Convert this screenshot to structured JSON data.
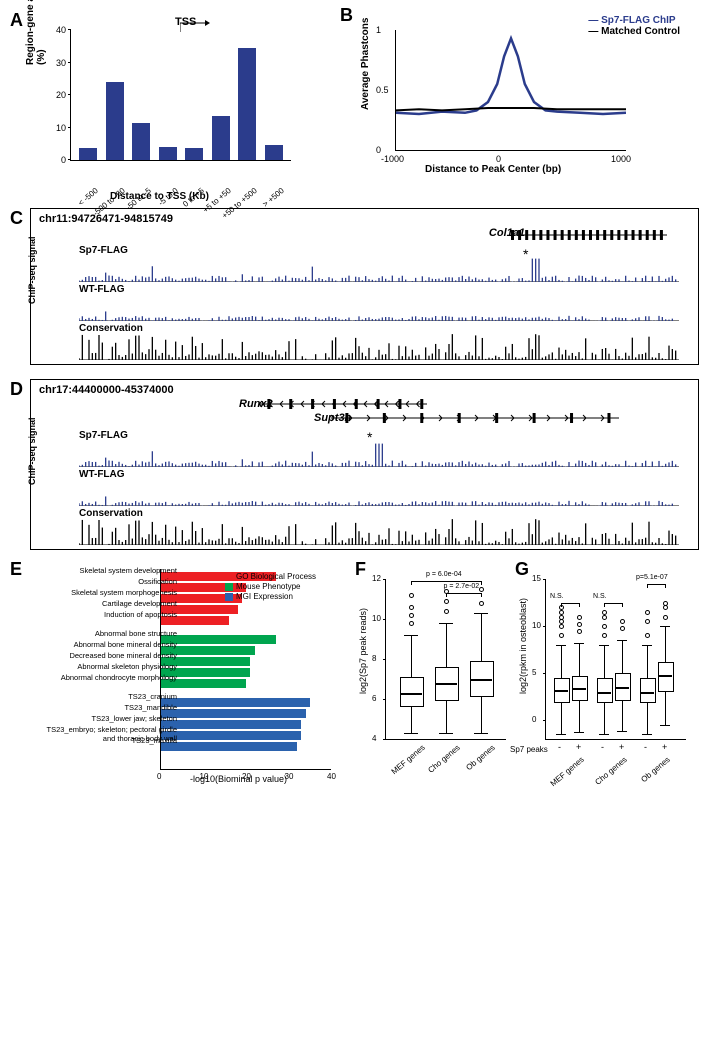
{
  "panelA": {
    "label": "A",
    "type": "bar",
    "ylabel": "Region-gene associations\n(%)",
    "xlabel": "Distance to TSS (Kb)",
    "tss_label": "TSS",
    "ylim": [
      0,
      40
    ],
    "ytick_step": 10,
    "categories": [
      "< -500",
      "-500 to -50",
      "-50 to -5",
      "-5 to 0",
      "0 to +5",
      "+5 to +50",
      "+50 to +500",
      "> +500"
    ],
    "values": [
      3.8,
      24,
      11.5,
      4,
      3.8,
      13.5,
      34.5,
      4.5
    ],
    "bar_color": "#2b3c8c",
    "background": "#ffffff"
  },
  "panelB": {
    "label": "B",
    "type": "line",
    "ylabel": "Average Phastcons",
    "xlabel": "Distance to Peak Center (bp)",
    "ylim": [
      0,
      1
    ],
    "ytick_step": 0.5,
    "xlim": [
      -1000,
      1000
    ],
    "xticks": [
      -1000,
      0,
      1000
    ],
    "series": [
      {
        "name": "Sp7-FLAG ChIP",
        "color": "#2b3c8c",
        "width": 2.5,
        "points": [
          [
            -1000,
            0.31
          ],
          [
            -800,
            0.3
          ],
          [
            -600,
            0.32
          ],
          [
            -400,
            0.31
          ],
          [
            -300,
            0.33
          ],
          [
            -200,
            0.4
          ],
          [
            -120,
            0.55
          ],
          [
            -60,
            0.78
          ],
          [
            0,
            0.93
          ],
          [
            60,
            0.78
          ],
          [
            120,
            0.55
          ],
          [
            200,
            0.4
          ],
          [
            300,
            0.33
          ],
          [
            400,
            0.32
          ],
          [
            600,
            0.31
          ],
          [
            800,
            0.3
          ],
          [
            1000,
            0.31
          ]
        ]
      },
      {
        "name": "Matched Control",
        "color": "#000000",
        "width": 2,
        "points": [
          [
            -1000,
            0.33
          ],
          [
            -800,
            0.34
          ],
          [
            -600,
            0.33
          ],
          [
            -400,
            0.34
          ],
          [
            -200,
            0.35
          ],
          [
            0,
            0.35
          ],
          [
            200,
            0.35
          ],
          [
            400,
            0.34
          ],
          [
            600,
            0.34
          ],
          [
            800,
            0.34
          ],
          [
            1000,
            0.34
          ]
        ]
      }
    ]
  },
  "panelC": {
    "label": "C",
    "locus": "chr11:94726471-94815749",
    "gene": "Col1a1",
    "gene_x": 0.72,
    "gene_width": 0.26,
    "star_x": 0.76,
    "tracks": [
      {
        "name": "Sp7-FLAG",
        "color": "#2b3c8c",
        "ymax": 20,
        "yticks": [
          0,
          20
        ]
      },
      {
        "name": "WT-FLAG",
        "color": "#2b3c8c",
        "ymax": 20,
        "yticks": [
          0,
          20
        ]
      },
      {
        "name": "Conservation",
        "color": "#000000",
        "ymax": 1
      }
    ],
    "side_label": "ChIP-seq signal"
  },
  "panelD": {
    "label": "D",
    "locus": "chr17:44400000-45374000",
    "genes": [
      {
        "name": "Runx2",
        "x": 0.3,
        "width": 0.28,
        "dir": "left"
      },
      {
        "name": "Supt3h",
        "x": 0.42,
        "width": 0.48,
        "dir": "right"
      }
    ],
    "star_x": 0.5,
    "tracks": [
      {
        "name": "Sp7-FLAG",
        "color": "#2b3c8c",
        "ymax": 40,
        "yticks": [
          0,
          40
        ]
      },
      {
        "name": "WT-FLAG",
        "color": "#2b3c8c",
        "ymax": 40,
        "yticks": [
          0,
          40
        ]
      },
      {
        "name": "Conservation",
        "color": "#000000",
        "ymax": 1
      }
    ],
    "side_label": "ChIP-seq signal"
  },
  "panelE": {
    "label": "E",
    "type": "hbar",
    "xlabel": "-log10(Biominal p value)",
    "xlim": [
      0,
      40
    ],
    "xticks": [
      0,
      10,
      20,
      30,
      40
    ],
    "groups": [
      {
        "name": "GO Biological Process",
        "color": "#ed2024",
        "rows": [
          {
            "label": "Skeletal system development",
            "value": 27
          },
          {
            "label": "Ossification",
            "value": 20
          },
          {
            "label": "Skeletal system morphogenesis",
            "value": 19
          },
          {
            "label": "Cartilage development",
            "value": 18
          },
          {
            "label": "Induction of apoptosis",
            "value": 16
          }
        ]
      },
      {
        "name": "Mouse Phenotype",
        "color": "#00a54f",
        "rows": [
          {
            "label": "Abnormal bone structure",
            "value": 27
          },
          {
            "label": "Abnormal bone mineral density",
            "value": 22
          },
          {
            "label": "Decreased bone mineral density",
            "value": 21
          },
          {
            "label": "Abnormal skeleton physiology",
            "value": 21
          },
          {
            "label": "Abnormal chondrocyte morphology",
            "value": 20
          }
        ]
      },
      {
        "name": "MGI Expression",
        "color": "#2b62ad",
        "rows": [
          {
            "label": "TS23_cranium",
            "value": 35
          },
          {
            "label": "TS23_mandible",
            "value": 34
          },
          {
            "label": "TS23_lower jaw; skeleton",
            "value": 33
          },
          {
            "label": "TS23_embryo; skeleton; pectoral girdle and thoracic body wall",
            "value": 33
          },
          {
            "label": "TS23_maxilla",
            "value": 32
          }
        ]
      }
    ]
  },
  "panelF": {
    "label": "F",
    "type": "boxplot",
    "ylabel": "log2(Sp7 peak reads)",
    "ylim": [
      4,
      12
    ],
    "yticks": [
      4,
      6,
      8,
      10,
      12
    ],
    "categories": [
      "MEF genes",
      "Cho genes",
      "Ob genes"
    ],
    "boxes": [
      {
        "q1": 5.7,
        "median": 6.3,
        "q3": 7.1,
        "lo": 4.3,
        "hi": 9.2,
        "outliers": [
          9.8,
          10.2,
          10.6,
          11.2
        ]
      },
      {
        "q1": 6.0,
        "median": 6.8,
        "q3": 7.6,
        "lo": 4.3,
        "hi": 9.8,
        "outliers": [
          10.4,
          10.9,
          11.4
        ]
      },
      {
        "q1": 6.2,
        "median": 7.0,
        "q3": 7.9,
        "lo": 4.3,
        "hi": 10.3,
        "outliers": [
          10.8,
          11.5
        ]
      }
    ],
    "pvals": [
      {
        "text": "p = 6.0e-04",
        "from": 0,
        "to": 2,
        "y": 11.9
      },
      {
        "text": "p = 2.7e-02",
        "from": 1,
        "to": 2,
        "y": 11.3
      }
    ]
  },
  "panelG": {
    "label": "G",
    "type": "boxplot",
    "ylabel": "log2(rpkm in osteoblast)",
    "ylim": [
      -2,
      15
    ],
    "yticks": [
      0,
      5,
      10,
      15
    ],
    "categories": [
      "MEF genes",
      "Cho genes",
      "Ob genes"
    ],
    "subgroup_label": "Sp7 peaks",
    "subgroups": [
      "-",
      "+"
    ],
    "boxes": [
      {
        "q1": 2.0,
        "median": 3.2,
        "q3": 4.5,
        "lo": -1.5,
        "hi": 8.0,
        "outliers": [
          9,
          10,
          10.5,
          11,
          11.5,
          12
        ]
      },
      {
        "q1": 2.2,
        "median": 3.4,
        "q3": 4.7,
        "lo": -1.3,
        "hi": 8.2,
        "outliers": [
          9.5,
          10.2,
          11
        ]
      },
      {
        "q1": 2.0,
        "median": 3.0,
        "q3": 4.5,
        "lo": -1.5,
        "hi": 8.0,
        "outliers": [
          9,
          10,
          11,
          11.5
        ]
      },
      {
        "q1": 2.3,
        "median": 3.5,
        "q3": 5.0,
        "lo": -1.2,
        "hi": 8.5,
        "outliers": [
          9.8,
          10.5
        ]
      },
      {
        "q1": 2.0,
        "median": 3.0,
        "q3": 4.5,
        "lo": -1.5,
        "hi": 8.0,
        "outliers": [
          9,
          10.5,
          11.5
        ]
      },
      {
        "q1": 3.2,
        "median": 4.8,
        "q3": 6.2,
        "lo": -0.5,
        "hi": 10.0,
        "outliers": [
          11,
          12,
          12.5
        ]
      }
    ],
    "pvals": [
      {
        "text": "N.S.",
        "from": 0,
        "to": 1,
        "y": 12.5
      },
      {
        "text": "N.S.",
        "from": 2,
        "to": 3,
        "y": 12.5
      },
      {
        "text": "p=5.1e-07",
        "from": 4,
        "to": 5,
        "y": 14.5
      }
    ]
  }
}
